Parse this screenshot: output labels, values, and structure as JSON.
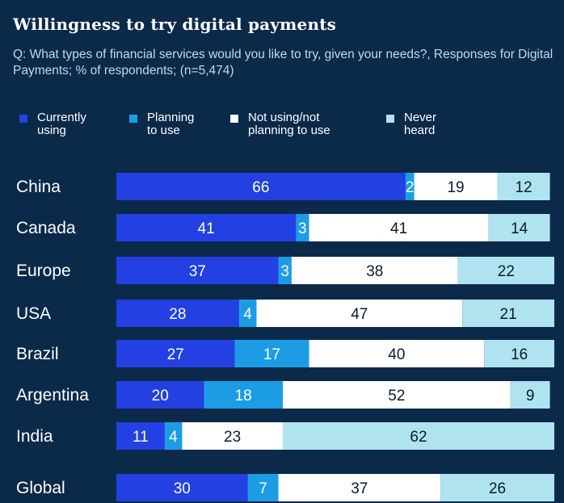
{
  "title": "Willingness to try digital payments",
  "subtitle": "Q: What types of financial services would you like to try, given your needs?, Responses for Digital Payments; % of respondents; (n=5,474)",
  "legend": [
    {
      "label_line1": "Currently",
      "label_line2": "using",
      "color": "#2340e3"
    },
    {
      "label_line1": "Planning",
      "label_line2": "to use",
      "color": "#1d9ce6"
    },
    {
      "label_line1": "Not using/not",
      "label_line2": "planning to use",
      "color": "#ffffff"
    },
    {
      "label_line1": "Never",
      "label_line2": "heard",
      "color": "#aee3ef"
    }
  ],
  "chart_data": {
    "type": "bar",
    "orientation": "horizontal",
    "stacked": true,
    "categories": [
      "China",
      "Canada",
      "Europe",
      "USA",
      "Brazil",
      "Argentina",
      "India",
      "Global"
    ],
    "series": [
      {
        "name": "Currently using",
        "color": "#2340e3",
        "values": [
          66,
          41,
          37,
          28,
          27,
          20,
          11,
          30
        ]
      },
      {
        "name": "Planning to use",
        "color": "#1d9ce6",
        "values": [
          2,
          3,
          3,
          4,
          17,
          18,
          4,
          7
        ]
      },
      {
        "name": "Not using/not planning to use",
        "color": "#ffffff",
        "values": [
          19,
          41,
          38,
          47,
          40,
          52,
          23,
          37
        ]
      },
      {
        "name": "Never heard",
        "color": "#aee3ef",
        "values": [
          12,
          14,
          22,
          21,
          16,
          9,
          62,
          26
        ]
      }
    ],
    "xlim": [
      0,
      100
    ],
    "data_labels": true,
    "grid": false,
    "legend_position": "top"
  }
}
